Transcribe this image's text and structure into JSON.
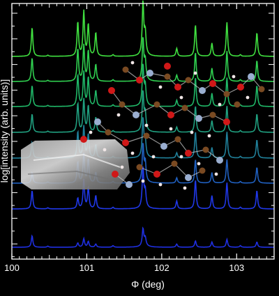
{
  "chart_data": {
    "type": "line",
    "xlabel": "Φ (deg)",
    "ylabel": "log[intensity (arb. units)]",
    "xlim": [
      100.0,
      103.5
    ],
    "x_ticks": [
      "100",
      "101",
      "102",
      "103"
    ],
    "y_scale": "log",
    "y_tick_labels": "none",
    "grid": false,
    "legend": "none",
    "layout": "waterfall (vertically offset spectra, bottom to top)",
    "peak_positions_deg": [
      100.27,
      100.48,
      100.88,
      100.96,
      101.02,
      101.12,
      101.35,
      101.75,
      101.78,
      102.2,
      102.45,
      102.67,
      102.87,
      103.05,
      103.27
    ],
    "series": [
      {
        "color": "#1f2fe0",
        "peak_heights": [
          0.22,
          0.02,
          0.08,
          0.16,
          0.11,
          0.06,
          0.03,
          0.32,
          0.14,
          0.06,
          0.12,
          0.1,
          0.15,
          0.03,
          0.1
        ]
      },
      {
        "color": "#2038e8",
        "peak_heights": [
          0.35,
          0.02,
          0.2,
          0.55,
          0.4,
          0.25,
          0.03,
          0.75,
          0.3,
          0.15,
          0.55,
          0.25,
          0.5,
          0.03,
          0.35
        ]
      },
      {
        "color": "#2060c0",
        "peak_heights": [
          0.2,
          0.02,
          0.4,
          0.55,
          0.45,
          0.2,
          0.03,
          0.7,
          0.35,
          0.1,
          0.45,
          0.2,
          0.45,
          0.03,
          0.3
        ]
      },
      {
        "color": "#20809a",
        "peak_heights": [
          0.3,
          0.02,
          0.5,
          0.6,
          0.45,
          0.25,
          0.03,
          0.72,
          0.3,
          0.1,
          0.5,
          0.2,
          0.5,
          0.03,
          0.35
        ]
      },
      {
        "color": "#20a080",
        "peak_heights": [
          0.35,
          0.02,
          0.55,
          0.62,
          0.5,
          0.28,
          0.03,
          0.74,
          0.32,
          0.1,
          0.5,
          0.22,
          0.5,
          0.03,
          0.35
        ]
      },
      {
        "color": "#20b868",
        "peak_heights": [
          0.4,
          0.02,
          0.6,
          0.65,
          0.55,
          0.3,
          0.03,
          0.75,
          0.35,
          0.12,
          0.55,
          0.25,
          0.55,
          0.03,
          0.4
        ]
      },
      {
        "color": "#30d050",
        "peak_heights": [
          0.45,
          0.02,
          0.62,
          0.68,
          0.58,
          0.32,
          0.03,
          0.78,
          0.35,
          0.12,
          0.55,
          0.25,
          0.58,
          0.03,
          0.4
        ]
      },
      {
        "color": "#40e040",
        "peak_heights": [
          0.55,
          0.02,
          0.65,
          0.85,
          0.6,
          0.45,
          0.03,
          1.0,
          0.4,
          0.15,
          0.6,
          0.25,
          0.65,
          0.03,
          0.45
        ]
      }
    ]
  },
  "inset_images": {
    "crystal_photo": "photograph of a translucent grey crystal",
    "molecule_overlay": "ball-and-stick molecular packing model (brown carbon, red oxygen, pale blue nitrogen, white hydrogen)"
  },
  "colors": {
    "background": "#000000",
    "axes": "#ffffff",
    "carbon": "#7a4a22",
    "oxygen": "#d01818",
    "nitrogen": "#9aaed0",
    "hydrogen": "#f0e6e6"
  }
}
